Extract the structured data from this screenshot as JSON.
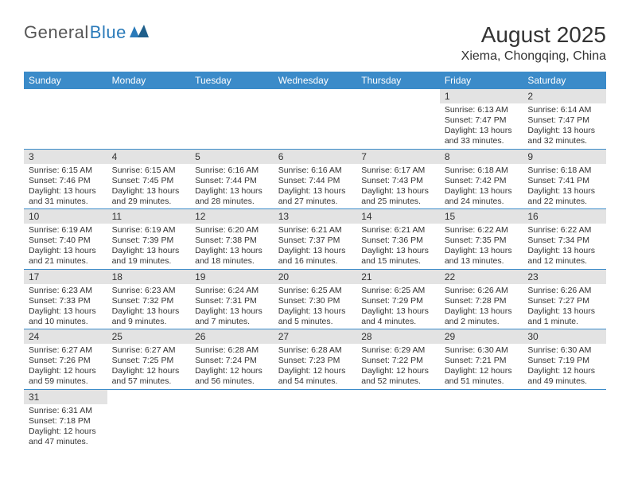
{
  "logo": {
    "text1": "General",
    "text2": "Blue"
  },
  "title": "August 2025",
  "location": "Xiema, Chongqing, China",
  "colors": {
    "header_bg": "#3b8bc9",
    "header_text": "#ffffff",
    "dayhead_bg": "#e3e3e3",
    "border": "#3b8bc9",
    "logo_blue": "#2a7ab9"
  },
  "weekdays": [
    "Sunday",
    "Monday",
    "Tuesday",
    "Wednesday",
    "Thursday",
    "Friday",
    "Saturday"
  ],
  "weeks": [
    [
      null,
      null,
      null,
      null,
      null,
      {
        "n": "1",
        "sr": "6:13 AM",
        "ss": "7:47 PM",
        "dl": "13 hours and 33 minutes."
      },
      {
        "n": "2",
        "sr": "6:14 AM",
        "ss": "7:47 PM",
        "dl": "13 hours and 32 minutes."
      }
    ],
    [
      {
        "n": "3",
        "sr": "6:15 AM",
        "ss": "7:46 PM",
        "dl": "13 hours and 31 minutes."
      },
      {
        "n": "4",
        "sr": "6:15 AM",
        "ss": "7:45 PM",
        "dl": "13 hours and 29 minutes."
      },
      {
        "n": "5",
        "sr": "6:16 AM",
        "ss": "7:44 PM",
        "dl": "13 hours and 28 minutes."
      },
      {
        "n": "6",
        "sr": "6:16 AM",
        "ss": "7:44 PM",
        "dl": "13 hours and 27 minutes."
      },
      {
        "n": "7",
        "sr": "6:17 AM",
        "ss": "7:43 PM",
        "dl": "13 hours and 25 minutes."
      },
      {
        "n": "8",
        "sr": "6:18 AM",
        "ss": "7:42 PM",
        "dl": "13 hours and 24 minutes."
      },
      {
        "n": "9",
        "sr": "6:18 AM",
        "ss": "7:41 PM",
        "dl": "13 hours and 22 minutes."
      }
    ],
    [
      {
        "n": "10",
        "sr": "6:19 AM",
        "ss": "7:40 PM",
        "dl": "13 hours and 21 minutes."
      },
      {
        "n": "11",
        "sr": "6:19 AM",
        "ss": "7:39 PM",
        "dl": "13 hours and 19 minutes."
      },
      {
        "n": "12",
        "sr": "6:20 AM",
        "ss": "7:38 PM",
        "dl": "13 hours and 18 minutes."
      },
      {
        "n": "13",
        "sr": "6:21 AM",
        "ss": "7:37 PM",
        "dl": "13 hours and 16 minutes."
      },
      {
        "n": "14",
        "sr": "6:21 AM",
        "ss": "7:36 PM",
        "dl": "13 hours and 15 minutes."
      },
      {
        "n": "15",
        "sr": "6:22 AM",
        "ss": "7:35 PM",
        "dl": "13 hours and 13 minutes."
      },
      {
        "n": "16",
        "sr": "6:22 AM",
        "ss": "7:34 PM",
        "dl": "13 hours and 12 minutes."
      }
    ],
    [
      {
        "n": "17",
        "sr": "6:23 AM",
        "ss": "7:33 PM",
        "dl": "13 hours and 10 minutes."
      },
      {
        "n": "18",
        "sr": "6:23 AM",
        "ss": "7:32 PM",
        "dl": "13 hours and 9 minutes."
      },
      {
        "n": "19",
        "sr": "6:24 AM",
        "ss": "7:31 PM",
        "dl": "13 hours and 7 minutes."
      },
      {
        "n": "20",
        "sr": "6:25 AM",
        "ss": "7:30 PM",
        "dl": "13 hours and 5 minutes."
      },
      {
        "n": "21",
        "sr": "6:25 AM",
        "ss": "7:29 PM",
        "dl": "13 hours and 4 minutes."
      },
      {
        "n": "22",
        "sr": "6:26 AM",
        "ss": "7:28 PM",
        "dl": "13 hours and 2 minutes."
      },
      {
        "n": "23",
        "sr": "6:26 AM",
        "ss": "7:27 PM",
        "dl": "13 hours and 1 minute."
      }
    ],
    [
      {
        "n": "24",
        "sr": "6:27 AM",
        "ss": "7:26 PM",
        "dl": "12 hours and 59 minutes."
      },
      {
        "n": "25",
        "sr": "6:27 AM",
        "ss": "7:25 PM",
        "dl": "12 hours and 57 minutes."
      },
      {
        "n": "26",
        "sr": "6:28 AM",
        "ss": "7:24 PM",
        "dl": "12 hours and 56 minutes."
      },
      {
        "n": "27",
        "sr": "6:28 AM",
        "ss": "7:23 PM",
        "dl": "12 hours and 54 minutes."
      },
      {
        "n": "28",
        "sr": "6:29 AM",
        "ss": "7:22 PM",
        "dl": "12 hours and 52 minutes."
      },
      {
        "n": "29",
        "sr": "6:30 AM",
        "ss": "7:21 PM",
        "dl": "12 hours and 51 minutes."
      },
      {
        "n": "30",
        "sr": "6:30 AM",
        "ss": "7:19 PM",
        "dl": "12 hours and 49 minutes."
      }
    ],
    [
      {
        "n": "31",
        "sr": "6:31 AM",
        "ss": "7:18 PM",
        "dl": "12 hours and 47 minutes."
      },
      null,
      null,
      null,
      null,
      null,
      null
    ]
  ],
  "labels": {
    "sunrise": "Sunrise:",
    "sunset": "Sunset:",
    "daylight": "Daylight:"
  }
}
